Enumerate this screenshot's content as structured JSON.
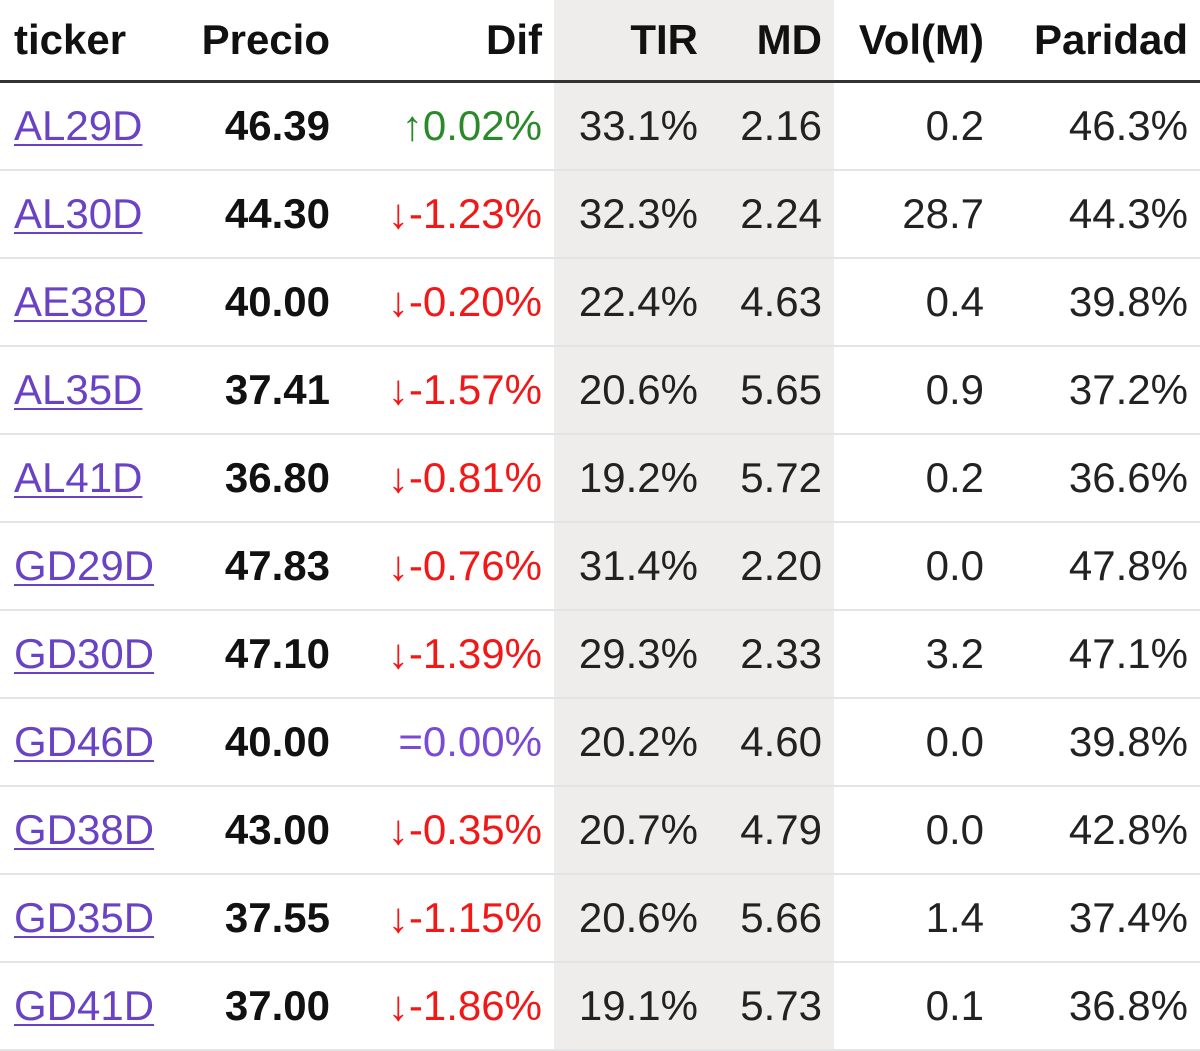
{
  "table": {
    "columns": [
      "ticker",
      "Precio",
      "Dif",
      "TIR",
      "MD",
      "Vol(M)",
      "Paridad"
    ],
    "rows": [
      {
        "ticker": "AL29D",
        "precio": "46.39",
        "dif": "↑0.02%",
        "trend": "up",
        "tir": "33.1%",
        "md": "2.16",
        "vol": "0.2",
        "paridad": "46.3%"
      },
      {
        "ticker": "AL30D",
        "precio": "44.30",
        "dif": "↓-1.23%",
        "trend": "down",
        "tir": "32.3%",
        "md": "2.24",
        "vol": "28.7",
        "paridad": "44.3%"
      },
      {
        "ticker": "AE38D",
        "precio": "40.00",
        "dif": "↓-0.20%",
        "trend": "down",
        "tir": "22.4%",
        "md": "4.63",
        "vol": "0.4",
        "paridad": "39.8%"
      },
      {
        "ticker": "AL35D",
        "precio": "37.41",
        "dif": "↓-1.57%",
        "trend": "down",
        "tir": "20.6%",
        "md": "5.65",
        "vol": "0.9",
        "paridad": "37.2%"
      },
      {
        "ticker": "AL41D",
        "precio": "36.80",
        "dif": "↓-0.81%",
        "trend": "down",
        "tir": "19.2%",
        "md": "5.72",
        "vol": "0.2",
        "paridad": "36.6%"
      },
      {
        "ticker": "GD29D",
        "precio": "47.83",
        "dif": "↓-0.76%",
        "trend": "down",
        "tir": "31.4%",
        "md": "2.20",
        "vol": "0.0",
        "paridad": "47.8%"
      },
      {
        "ticker": "GD30D",
        "precio": "47.10",
        "dif": "↓-1.39%",
        "trend": "down",
        "tir": "29.3%",
        "md": "2.33",
        "vol": "3.2",
        "paridad": "47.1%"
      },
      {
        "ticker": "GD46D",
        "precio": "40.00",
        "dif": "=0.00%",
        "trend": "flat",
        "tir": "20.2%",
        "md": "4.60",
        "vol": "0.0",
        "paridad": "39.8%"
      },
      {
        "ticker": "GD38D",
        "precio": "43.00",
        "dif": "↓-0.35%",
        "trend": "down",
        "tir": "20.7%",
        "md": "4.79",
        "vol": "0.0",
        "paridad": "42.8%"
      },
      {
        "ticker": "GD35D",
        "precio": "37.55",
        "dif": "↓-1.15%",
        "trend": "down",
        "tir": "20.6%",
        "md": "5.66",
        "vol": "1.4",
        "paridad": "37.4%"
      },
      {
        "ticker": "GD41D",
        "precio": "37.00",
        "dif": "↓-1.86%",
        "trend": "down",
        "tir": "19.1%",
        "md": "5.73",
        "vol": "0.1",
        "paridad": "36.8%"
      }
    ]
  },
  "colors": {
    "up": "#2a8a2a",
    "down": "#f21818",
    "flat": "#7a4ad6",
    "link": "#6a42c4",
    "shaded_column": "#efedec"
  }
}
